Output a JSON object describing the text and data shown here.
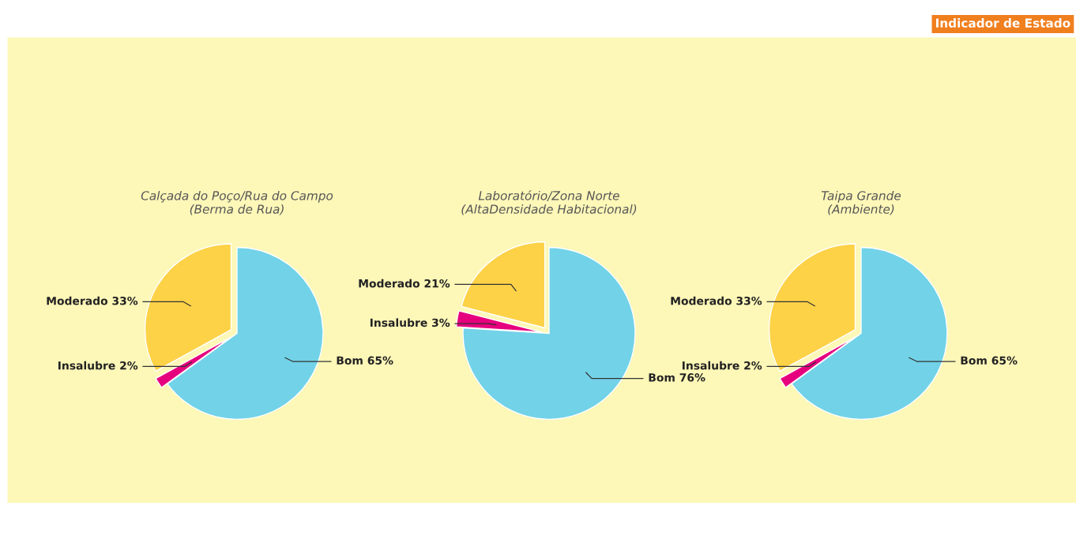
{
  "chart_data": [
    {
      "type": "pie",
      "title": "Calçada do Poço/Rua do Campo\n(Berma de Rua)",
      "categories": [
        "Bom",
        "Insalubre",
        "Moderado"
      ],
      "values": [
        65,
        2,
        33
      ],
      "value_labels": [
        "65%",
        "2%",
        "33%"
      ],
      "colors": [
        "#72d2e8",
        "#e6007e",
        "#fdd247"
      ],
      "annotations": [
        "Indicador de Estado"
      ]
    },
    {
      "type": "pie",
      "title": "Laboratório/Zona Norte\n(AltaDensidade Habitacional)",
      "categories": [
        "Bom",
        "Insalubre",
        "Moderado"
      ],
      "values": [
        76,
        3,
        21
      ],
      "value_labels": [
        "76%",
        "3%",
        "21%"
      ],
      "colors": [
        "#72d2e8",
        "#e6007e",
        "#fdd247"
      ]
    },
    {
      "type": "pie",
      "title": "Taipa Grande\n(Ambiente)",
      "categories": [
        "Bom",
        "Insalubre",
        "Moderado"
      ],
      "values": [
        65,
        2,
        33
      ],
      "value_labels": [
        "65%",
        "2%",
        "33%"
      ],
      "colors": [
        "#72d2e8",
        "#e6007e",
        "#fdd247"
      ]
    }
  ]
}
